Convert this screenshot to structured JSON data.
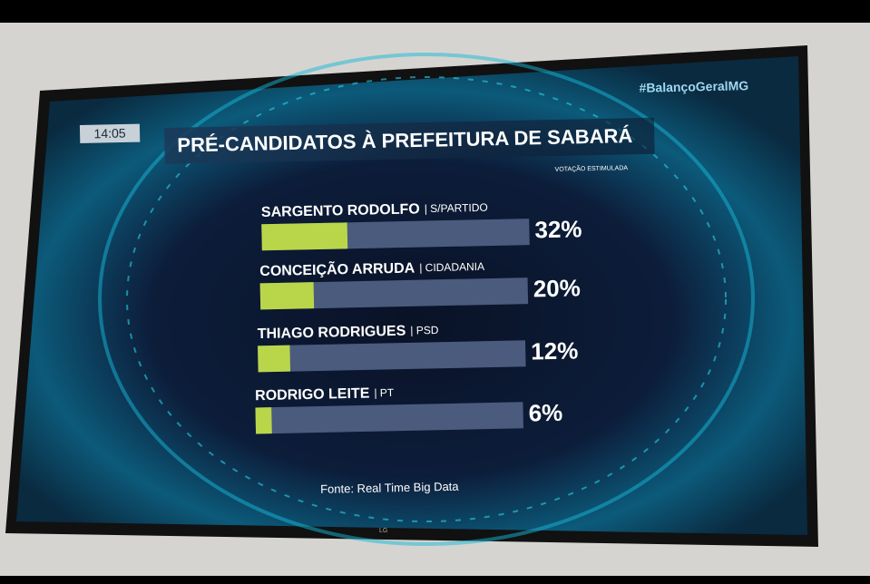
{
  "chart_data": {
    "type": "bar",
    "orientation": "horizontal",
    "title": "PRÉ-CANDIDATOS À PREFEITURA DE SABARÁ",
    "subtitle": "VOTAÇÃO ESTIMULADA",
    "clock": "14:05",
    "hashtag": "#BalançoGeralMG",
    "source": "Fonte: Real Time Big Data",
    "categories": [
      "SARGENTO RODOLFO",
      "CONCEIÇÃO ARRUDA",
      "THIAGO RODRIGUES",
      "RODRIGO LEITE"
    ],
    "parties": [
      "| S/PARTIDO",
      "| CIDADANIA",
      "| PSD",
      "| PT"
    ],
    "values": [
      32,
      20,
      12,
      6
    ],
    "value_labels": [
      "32%",
      "20%",
      "12%",
      "6%"
    ],
    "color": "#b9d64b",
    "track_color": "#4b5b7e",
    "xlim": [
      0,
      100
    ]
  }
}
